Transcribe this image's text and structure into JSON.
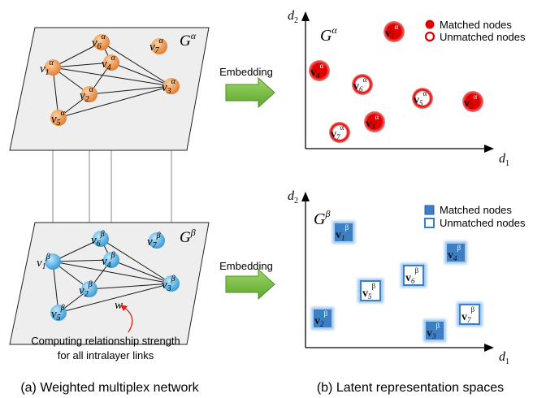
{
  "panel_a": {
    "caption": "(a) Weighted multiplex network",
    "layer_alpha": {
      "name": "G",
      "sup": "α",
      "nodes": [
        {
          "id": "v1",
          "base": "v",
          "sub": "1",
          "sup": "α"
        },
        {
          "id": "v2",
          "base": "v",
          "sub": "2",
          "sup": "α"
        },
        {
          "id": "v3",
          "base": "v",
          "sub": "3",
          "sup": "α"
        },
        {
          "id": "v4",
          "base": "v",
          "sub": "4",
          "sup": "α"
        },
        {
          "id": "v5",
          "base": "v",
          "sub": "5",
          "sup": "α"
        },
        {
          "id": "v6",
          "base": "v",
          "sub": "6",
          "sup": "α"
        },
        {
          "id": "v7",
          "base": "v",
          "sub": "7",
          "sup": "α"
        }
      ]
    },
    "layer_beta": {
      "name": "G",
      "sup": "β",
      "nodes": [
        {
          "id": "v1",
          "base": "v",
          "sub": "1",
          "sup": "β"
        },
        {
          "id": "v2",
          "base": "v",
          "sub": "2",
          "sup": "β"
        },
        {
          "id": "v3",
          "base": "v",
          "sub": "3",
          "sup": "β"
        },
        {
          "id": "v4",
          "base": "v",
          "sub": "4",
          "sup": "β"
        },
        {
          "id": "v5",
          "base": "v",
          "sub": "5",
          "sup": "β"
        },
        {
          "id": "v6",
          "base": "v",
          "sub": "6",
          "sup": "β"
        },
        {
          "id": "v7",
          "base": "v",
          "sub": "7",
          "sup": "β"
        }
      ],
      "weight_label": "w"
    },
    "annotation_line1": "Computing relationship strength",
    "annotation_line2": "for all intralayer links"
  },
  "arrows": {
    "top_label": "Embedding",
    "bottom_label": "Embedding"
  },
  "panel_b": {
    "caption": "(b) Latent representation spaces",
    "space_alpha": {
      "y_axis_base": "d",
      "y_axis_sub": "2",
      "x_axis_base": "d",
      "x_axis_sub": "1",
      "layer_label": "G",
      "layer_sup": "α",
      "legend_matched": "Matched nodes",
      "legend_unmatched": "Unmatched nodes",
      "points": [
        {
          "base": "v",
          "sub": "1",
          "sup": "α",
          "matched": true
        },
        {
          "base": "v",
          "sub": "4",
          "sup": "α",
          "matched": true
        },
        {
          "base": "v",
          "sub": "6",
          "sup": "α",
          "matched": false
        },
        {
          "base": "v",
          "sub": "5",
          "sup": "α",
          "matched": false
        },
        {
          "base": "v",
          "sub": "2",
          "sup": "α",
          "matched": true
        },
        {
          "base": "v",
          "sub": "3",
          "sup": "α",
          "matched": true
        },
        {
          "base": "v",
          "sub": "7",
          "sup": "α",
          "matched": false
        }
      ]
    },
    "space_beta": {
      "y_axis_base": "d",
      "y_axis_sub": "2",
      "x_axis_base": "d",
      "x_axis_sub": "1",
      "layer_label": "G",
      "layer_sup": "β",
      "legend_matched": "Matched nodes",
      "legend_unmatched": "Unmatched nodes",
      "points": [
        {
          "base": "v",
          "sub": "1",
          "sup": "β",
          "matched": true
        },
        {
          "base": "v",
          "sub": "4",
          "sup": "β",
          "matched": true
        },
        {
          "base": "v",
          "sub": "6",
          "sup": "β",
          "matched": false
        },
        {
          "base": "v",
          "sub": "5",
          "sup": "β",
          "matched": false
        },
        {
          "base": "v",
          "sub": "2",
          "sup": "β",
          "matched": true
        },
        {
          "base": "v",
          "sub": "7",
          "sup": "β",
          "matched": false
        },
        {
          "base": "v",
          "sub": "3",
          "sup": "β",
          "matched": true
        }
      ]
    }
  },
  "colors": {
    "layer_fill": "#eeeeee",
    "layer_stroke": "#333333",
    "alpha_node": "#e8893f",
    "beta_node": "#3fa6dc",
    "latent_red": "#e00000",
    "latent_blue": "#3d7fc4",
    "arrow_green": "#70b83a",
    "annotation_red": "#e0201b"
  }
}
